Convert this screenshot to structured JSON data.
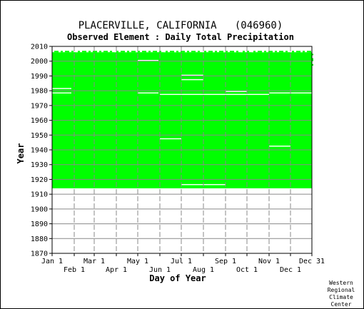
{
  "chart_data": {
    "type": "heatmap",
    "title": "PLACERVILLE, CALIFORNIA   (046960)",
    "subtitle": "Observed Element : Daily Total Precipitation",
    "xlabel": "Day of Year",
    "ylabel": "Year",
    "ylim": [
      1870,
      2010
    ],
    "yticks": [
      1870,
      1880,
      1890,
      1900,
      1910,
      1920,
      1930,
      1940,
      1950,
      1960,
      1970,
      1980,
      1990,
      2000,
      2010
    ],
    "x_ticks_top_row": [
      {
        "label": "Jan 1",
        "day": 1
      },
      {
        "label": "Mar 1",
        "day": 60
      },
      {
        "label": "May 1",
        "day": 121
      },
      {
        "label": "Jul 1",
        "day": 182
      },
      {
        "label": "Sep 1",
        "day": 244
      },
      {
        "label": "Nov 1",
        "day": 305
      },
      {
        "label": "Dec 31",
        "day": 365
      }
    ],
    "x_ticks_bottom_row": [
      {
        "label": "Feb 1",
        "day": 32
      },
      {
        "label": "Apr 1",
        "day": 91
      },
      {
        "label": "Jun 1",
        "day": 152
      },
      {
        "label": "Aug 1",
        "day": 213
      },
      {
        "label": "Oct 1",
        "day": 274
      },
      {
        "label": "Dec 1",
        "day": 335
      }
    ],
    "grid": true,
    "observed_color": "#00ff00",
    "observed_period": {
      "start_year": 1914,
      "end_year": 2005
    },
    "recent_partial_years": [
      2006,
      2005,
      2004,
      2003,
      2002,
      2001,
      2000,
      1999,
      1998,
      1997,
      1996
    ],
    "missing_segments": [
      {
        "year": 1981,
        "start_day": 1,
        "end_day": 28
      },
      {
        "year": 1978,
        "start_day": 1,
        "end_day": 28
      },
      {
        "year": 2000,
        "start_day": 121,
        "end_day": 150
      },
      {
        "year": 1978,
        "start_day": 121,
        "end_day": 150
      },
      {
        "year": 1977,
        "start_day": 152,
        "end_day": 182
      },
      {
        "year": 1977,
        "start_day": 182,
        "end_day": 213
      },
      {
        "year": 1990,
        "start_day": 182,
        "end_day": 213
      },
      {
        "year": 1987,
        "start_day": 182,
        "end_day": 213
      },
      {
        "year": 1977,
        "start_day": 213,
        "end_day": 244
      },
      {
        "year": 1977,
        "start_day": 244,
        "end_day": 274
      },
      {
        "year": 1979,
        "start_day": 244,
        "end_day": 274
      },
      {
        "year": 1977,
        "start_day": 274,
        "end_day": 305
      },
      {
        "year": 1978,
        "start_day": 305,
        "end_day": 335
      },
      {
        "year": 1978,
        "start_day": 335,
        "end_day": 365
      },
      {
        "year": 1947,
        "start_day": 152,
        "end_day": 182
      },
      {
        "year": 1942,
        "start_day": 305,
        "end_day": 335
      },
      {
        "year": 1916,
        "start_day": 182,
        "end_day": 244
      }
    ]
  },
  "credit": [
    "Western",
    "Regional",
    "Climate",
    "Center"
  ]
}
